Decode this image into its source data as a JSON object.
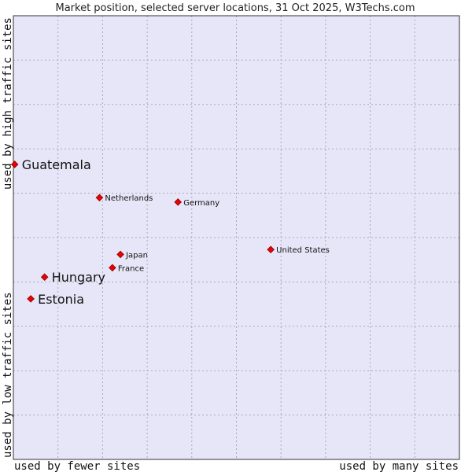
{
  "chart_data": {
    "type": "scatter",
    "title": "Market position, selected server locations, 31 Oct 2025, W3Techs.com",
    "xlabel_low": "used by fewer sites",
    "xlabel_high": "used by many sites",
    "ylabel_low": "used by low traffic sites",
    "ylabel_high": "used by high traffic sites",
    "xlim": [
      0,
      100
    ],
    "ylim": [
      0,
      100
    ],
    "grid": true,
    "colors": {
      "plot_bg": "#e6e6f8",
      "grid": "#a8a8b8",
      "marker": "#ee0000",
      "marker_stroke": "#880000"
    },
    "points": [
      {
        "name": "Guatemala",
        "x": 0.3,
        "y": 66.5,
        "emphasis": true
      },
      {
        "name": "Netherlands",
        "x": 19.3,
        "y": 59.0,
        "emphasis": false
      },
      {
        "name": "Germany",
        "x": 36.9,
        "y": 58.0,
        "emphasis": false
      },
      {
        "name": "United States",
        "x": 57.7,
        "y": 47.3,
        "emphasis": false
      },
      {
        "name": "Japan",
        "x": 24.0,
        "y": 46.2,
        "emphasis": false
      },
      {
        "name": "France",
        "x": 22.2,
        "y": 43.2,
        "emphasis": false
      },
      {
        "name": "Hungary",
        "x": 7.0,
        "y": 41.1,
        "emphasis": true
      },
      {
        "name": "Estonia",
        "x": 3.9,
        "y": 36.2,
        "emphasis": true
      }
    ]
  }
}
